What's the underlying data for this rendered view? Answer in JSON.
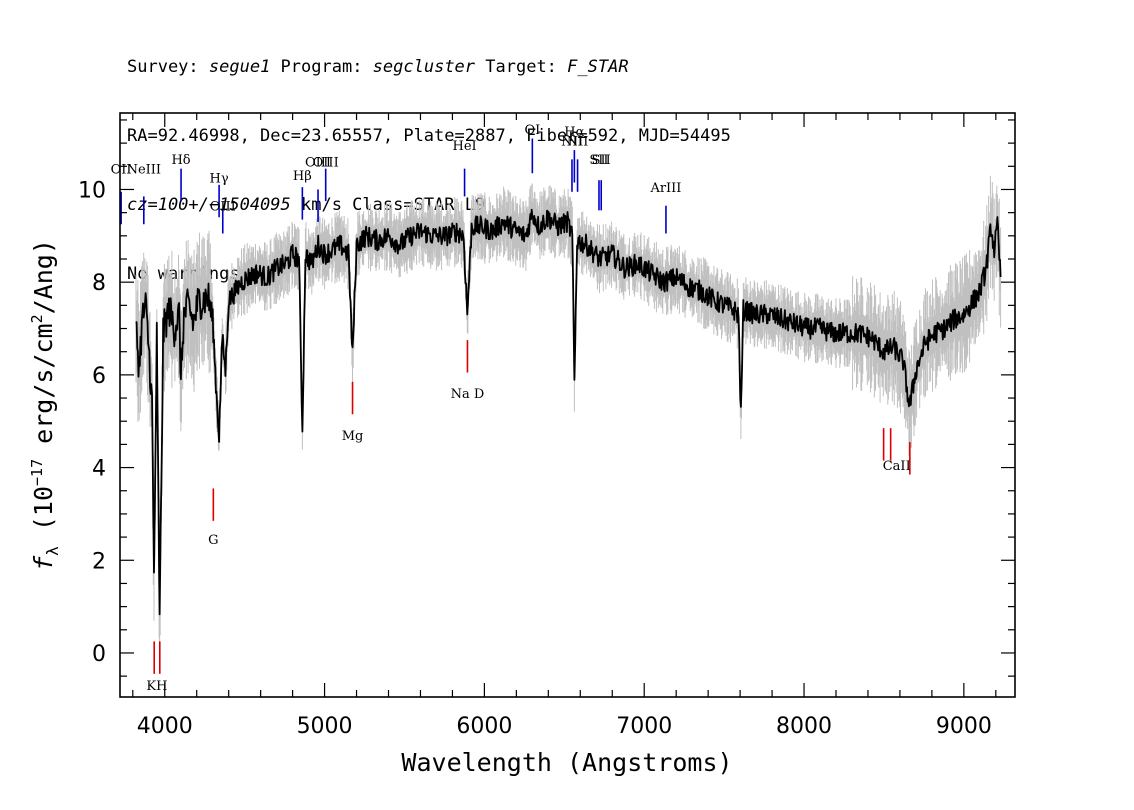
{
  "header": {
    "line1": {
      "survey_label": "Survey: ",
      "survey": "segue1",
      "program_label": " Program: ",
      "program": "segcluster",
      "target_label": " Target: ",
      "target": "F_STAR"
    },
    "line2": "RA=92.46998, Dec=23.65557, Plate=2887, Fiber=592, MJD=54495",
    "line3": {
      "cz": "cz=100+/−1504095",
      "rest": " km/s Class=STAR L9"
    },
    "line4": "No warnings."
  },
  "chart_data": {
    "type": "line",
    "xlabel": "Wavelength (Angstroms)",
    "ylabel_parts": {
      "symbol": "f",
      "subscript": "λ",
      "open": " (10",
      "exponent": "−17",
      "middle": " erg/s/cm",
      "exponent2": "2",
      "close": "/Ang)"
    },
    "xlim": [
      3720,
      9320
    ],
    "ylim": [
      -0.95,
      11.65
    ],
    "x_ticks": [
      4000,
      5000,
      6000,
      7000,
      8000,
      9000
    ],
    "y_ticks": [
      0,
      2,
      4,
      6,
      8,
      10
    ],
    "x_tick_labels": [
      "4000",
      "5000",
      "6000",
      "7000",
      "8000",
      "9000"
    ],
    "y_tick_labels": [
      "0",
      "2",
      "4",
      "6",
      "8",
      "10"
    ],
    "grid": false,
    "colors": {
      "flux": "#000000",
      "error_band": "#c0c0c0",
      "emission_line": "#0000cc",
      "absorption_line": "#dd0000",
      "sky_line": "#000000"
    },
    "series": [
      {
        "role": "flux",
        "x": [
          3820,
          3840,
          3860,
          3880,
          3900,
          3920,
          3933,
          3950,
          3968,
          3990,
          4010,
          4030,
          4060,
          4090,
          4101,
          4120,
          4150,
          4180,
          4210,
          4240,
          4270,
          4300,
          4320,
          4340,
          4360,
          4380,
          4400,
          4440,
          4480,
          4520,
          4580,
          4640,
          4700,
          4760,
          4800,
          4840,
          4861,
          4880,
          4920,
          4960,
          5000,
          5050,
          5100,
          5150,
          5175,
          5200,
          5260,
          5330,
          5400,
          5470,
          5540,
          5600,
          5680,
          5760,
          5830,
          5870,
          5893,
          5920,
          5980,
          6050,
          6120,
          6200,
          6260,
          6300,
          6340,
          6400,
          6460,
          6520,
          6550,
          6563,
          6580,
          6640,
          6720,
          6800,
          6880,
          6960,
          7040,
          7120,
          7200,
          7280,
          7360,
          7440,
          7500,
          7560,
          7590,
          7605,
          7620,
          7700,
          7780,
          7860,
          7940,
          8020,
          8100,
          8180,
          8260,
          8340,
          8420,
          8500,
          8560,
          8620,
          8660,
          8700,
          8760,
          8820,
          8880,
          8940,
          9000,
          9060,
          9100,
          9140,
          9170,
          9190,
          9210,
          9230
        ],
        "y": [
          7.0,
          6.2,
          7.2,
          7.5,
          6.6,
          5.4,
          1.6,
          6.8,
          0.6,
          6.9,
          7.2,
          7.4,
          7.0,
          7.3,
          5.9,
          7.3,
          7.5,
          7.1,
          7.6,
          7.6,
          7.7,
          7.2,
          5.8,
          4.7,
          6.8,
          6.1,
          7.6,
          7.8,
          8.0,
          8.1,
          8.2,
          8.1,
          8.3,
          8.4,
          8.6,
          8.5,
          4.8,
          8.6,
          8.4,
          8.8,
          8.6,
          8.7,
          8.8,
          8.6,
          6.4,
          8.8,
          9.0,
          8.9,
          9.0,
          8.8,
          9.0,
          9.1,
          9.0,
          9.0,
          9.1,
          9.0,
          7.3,
          9.2,
          9.2,
          9.1,
          9.3,
          9.1,
          9.0,
          9.5,
          9.2,
          9.4,
          9.2,
          9.3,
          9.0,
          5.8,
          8.9,
          8.8,
          8.5,
          8.6,
          8.3,
          8.4,
          8.2,
          8.0,
          8.1,
          7.9,
          7.8,
          7.6,
          7.5,
          7.4,
          7.3,
          5.1,
          7.4,
          7.3,
          7.3,
          7.2,
          7.1,
          7.0,
          7.0,
          6.9,
          6.9,
          6.9,
          6.8,
          6.5,
          6.6,
          6.3,
          5.3,
          6.1,
          6.7,
          6.9,
          7.0,
          7.2,
          7.3,
          7.6,
          7.8,
          8.3,
          9.2,
          8.7,
          9.2,
          8.1
        ]
      }
    ],
    "emission_lines": [
      {
        "label": "OII",
        "wavelength": 3727,
        "label_y": 10.35,
        "line_top": 9.95,
        "line_bottom": 9.25
      },
      {
        "label": "NeIII",
        "wavelength": 3869,
        "label_y": 10.35,
        "line_top": 9.85,
        "line_bottom": 9.25
      },
      {
        "label": "Hδ",
        "wavelength": 4102,
        "label_y": 10.55,
        "line_top": 10.45,
        "line_bottom": 9.75
      },
      {
        "label": "Hγ",
        "wavelength": 4340,
        "label_y": 10.15,
        "line_top": 10.1,
        "line_bottom": 9.4
      },
      {
        "label": "OIII",
        "wavelength": 4363,
        "label_y": 9.55,
        "line_top": 9.55,
        "line_bottom": 9.05
      },
      {
        "label": "Hβ",
        "wavelength": 4861,
        "label_y": 10.2,
        "line_top": 10.05,
        "line_bottom": 9.35
      },
      {
        "label": "OIII",
        "wavelength": 4959,
        "label_y": 10.5,
        "line_top": 10.0,
        "line_bottom": 9.3
      },
      {
        "label": "OIII",
        "wavelength": 5007,
        "label_y": 10.5,
        "line_top": 10.45,
        "line_bottom": 9.75
      },
      {
        "label": "HeI",
        "wavelength": 5876,
        "label_y": 10.85,
        "line_top": 10.45,
        "line_bottom": 9.85
      },
      {
        "label": "OI",
        "wavelength": 6300,
        "label_y": 11.2,
        "line_top": 11.1,
        "line_bottom": 10.35
      },
      {
        "label": "NII",
        "wavelength": 6548,
        "label_y": 10.95,
        "line_top": 10.65,
        "line_bottom": 9.95
      },
      {
        "label": "Hα",
        "wavelength": 6563,
        "label_y": 11.15,
        "line_top": 10.85,
        "line_bottom": 10.15
      },
      {
        "label": "NII",
        "wavelength": 6583,
        "label_y": 10.95,
        "line_top": 10.65,
        "line_bottom": 9.95
      },
      {
        "label": "SII",
        "wavelength": 6717,
        "label_y": 10.55,
        "line_top": 10.2,
        "line_bottom": 9.55
      },
      {
        "label": "SII",
        "wavelength": 6731,
        "label_y": 10.55,
        "line_top": 10.2,
        "line_bottom": 9.55
      },
      {
        "label": "ArIII",
        "wavelength": 7136,
        "label_y": 9.95,
        "line_top": 9.65,
        "line_bottom": 9.05
      }
    ],
    "absorption_lines": [
      {
        "label": "K",
        "wavelength": 3934,
        "line_top": 0.25,
        "line_bottom": -0.45
      },
      {
        "label": "H",
        "wavelength": 3969,
        "line_top": 0.25,
        "line_bottom": -0.45
      },
      {
        "label": "G",
        "wavelength": 4304,
        "line_top": 3.55,
        "line_bottom": 2.85
      },
      {
        "label": "Mg",
        "wavelength": 5175,
        "line_top": 5.85,
        "line_bottom": 5.15
      },
      {
        "label": "Na D",
        "wavelength": 5894,
        "line_top": 6.75,
        "line_bottom": 6.05
      },
      {
        "label": "CaII",
        "wavelength": 8498,
        "line_top": 4.85,
        "line_bottom": 4.15
      },
      {
        "label": "CaII",
        "wavelength": 8542,
        "line_top": 4.85,
        "line_bottom": 4.15
      },
      {
        "label": "CaII",
        "wavelength": 8662,
        "line_top": 4.55,
        "line_bottom": 3.85
      }
    ],
    "absorption_labels": [
      {
        "text": "KH",
        "wavelength": 3951,
        "label_y": -0.8
      },
      {
        "text": "G",
        "wavelength": 4304,
        "label_y": 2.35
      },
      {
        "text": "Mg",
        "wavelength": 5175,
        "label_y": 4.6
      },
      {
        "text": "Na D",
        "wavelength": 5894,
        "label_y": 5.5
      },
      {
        "text": "CaII",
        "wavelength": 8580,
        "label_y": 3.95
      }
    ]
  }
}
